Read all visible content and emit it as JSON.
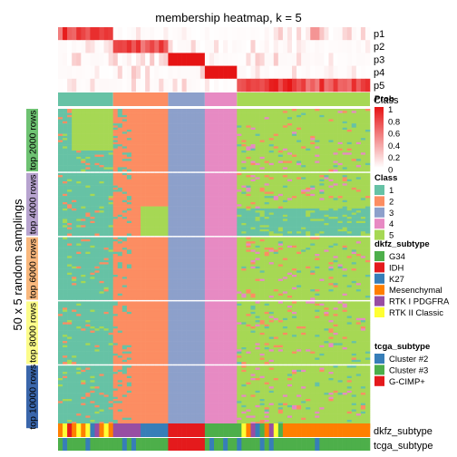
{
  "chart_data": {
    "type": "heatmap",
    "title": "membership heatmap, k = 5",
    "ylabel": "50 x 5 random samplings",
    "n_samples": 68,
    "prob_rows": [
      "p1",
      "p2",
      "p3",
      "p4",
      "p5"
    ],
    "class_row_label": "Class",
    "class_breaks": [
      0,
      12,
      24,
      32,
      39,
      68
    ],
    "class_order": [
      1,
      2,
      3,
      4,
      5
    ],
    "blocks": [
      "top 2000 rows",
      "top 4000 rows",
      "top 6000 rows",
      "top 8000 rows",
      "top 10000 rows"
    ],
    "block_colors": [
      "#6ec272",
      "#b7a3cf",
      "#f9b87e",
      "#fcfc8a",
      "#3a66ab"
    ],
    "prob_legend": {
      "title": "Prob",
      "ticks": [
        "1",
        "0.8",
        "0.6",
        "0.4",
        "0.2",
        "0"
      ]
    },
    "class_legend": {
      "title": "Class",
      "entries": [
        {
          "label": "1",
          "color": "#66c2a5"
        },
        {
          "label": "2",
          "color": "#fc8d62"
        },
        {
          "label": "3",
          "color": "#8da0cb"
        },
        {
          "label": "4",
          "color": "#e78ac3"
        },
        {
          "label": "5",
          "color": "#a6d854"
        }
      ]
    },
    "dkfz_legend": {
      "title": "dkfz_subtype",
      "entries": [
        {
          "label": "G34",
          "color": "#4daf4a"
        },
        {
          "label": "IDH",
          "color": "#e41a1c"
        },
        {
          "label": "K27",
          "color": "#377eb8"
        },
        {
          "label": "Mesenchymal",
          "color": "#ff7f00"
        },
        {
          "label": "RTK I PDGFRA",
          "color": "#984ea3"
        },
        {
          "label": "RTK II Classic",
          "color": "#ffff33"
        }
      ]
    },
    "tcga_legend": {
      "title": "tcga_subtype",
      "entries": [
        {
          "label": "Cluster #2",
          "color": "#377eb8"
        },
        {
          "label": "Cluster #3",
          "color": "#4daf4a"
        },
        {
          "label": "G-CIMP+",
          "color": "#e41a1c"
        }
      ]
    },
    "bottom_annotations": [
      "dkfz_subtype",
      "tcga_subtype"
    ]
  }
}
